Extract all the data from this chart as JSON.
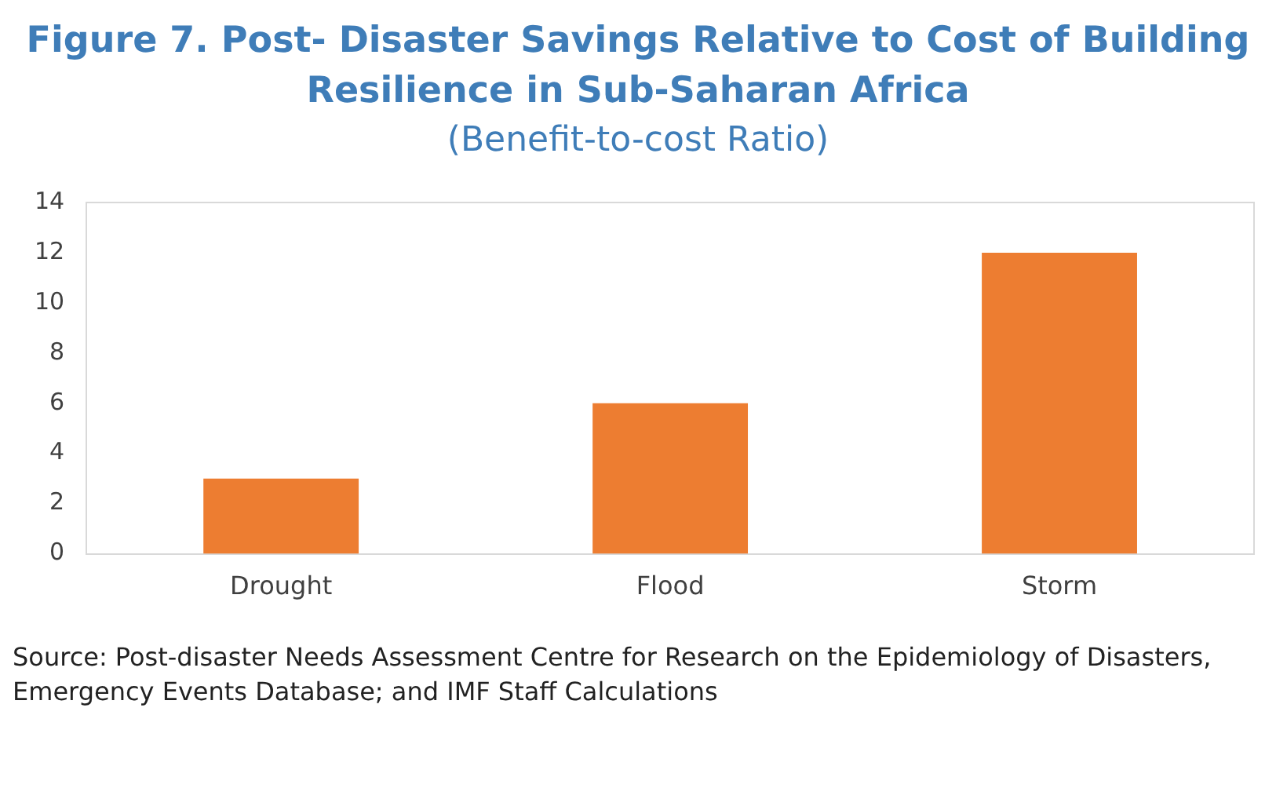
{
  "chart_data": {
    "type": "bar",
    "title": "Figure 7. Post- Disaster Savings Relative to Cost of Building Resilience in Sub-Saharan Africa",
    "subtitle": "(Benefit-to-cost Ratio)",
    "categories": [
      "Drought",
      "Flood",
      "Storm"
    ],
    "values": [
      3,
      6,
      12
    ],
    "color": "#ed7d31",
    "ylim": [
      0,
      14
    ],
    "yticks": [
      0,
      2,
      4,
      6,
      8,
      10,
      12,
      14
    ],
    "grid": false,
    "annotations": [
      "Source: Post-disaster Needs Assessment Centre for Research on the Epidemiology of Disasters, Emergency Events Database; and IMF Staff Calculations"
    ]
  }
}
